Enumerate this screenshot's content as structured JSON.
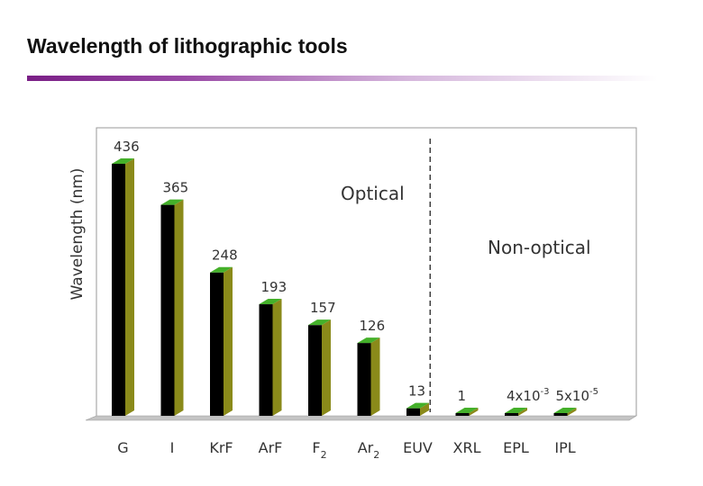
{
  "slide": {
    "title": "Wavelength of lithographic tools"
  },
  "chart_data": {
    "type": "bar",
    "title": "",
    "xlabel": "",
    "ylabel": "Wavelength (nm)",
    "ylim": [
      0,
      436
    ],
    "grid": false,
    "categories": [
      {
        "base": "G",
        "sub": ""
      },
      {
        "base": "I",
        "sub": ""
      },
      {
        "base": "KrF",
        "sub": ""
      },
      {
        "base": "ArF",
        "sub": ""
      },
      {
        "base": "F",
        "sub": "2"
      },
      {
        "base": "Ar",
        "sub": "2"
      },
      {
        "base": "EUV",
        "sub": ""
      },
      {
        "base": "XRL",
        "sub": ""
      },
      {
        "base": "EPL",
        "sub": ""
      },
      {
        "base": "IPL",
        "sub": ""
      }
    ],
    "values": [
      436,
      365,
      248,
      193,
      157,
      126,
      13,
      1,
      0.004,
      5e-05
    ],
    "value_labels": [
      {
        "text": "436",
        "sup": ""
      },
      {
        "text": "365",
        "sup": ""
      },
      {
        "text": "248",
        "sup": ""
      },
      {
        "text": "193",
        "sup": ""
      },
      {
        "text": "157",
        "sup": ""
      },
      {
        "text": "126",
        "sup": ""
      },
      {
        "text": "13",
        "sup": ""
      },
      {
        "text": "1",
        "sup": ""
      },
      {
        "text": "4x10",
        "sup": "-3"
      },
      {
        "text": "5x10",
        "sup": "-5"
      }
    ],
    "regions": [
      {
        "name": "Optical"
      },
      {
        "name": "Non-optical"
      }
    ],
    "divider_after_category": 6,
    "colors": {
      "bar_front": "#000000",
      "bar_side": "#8a8a1a",
      "bar_top": "#44b02a",
      "frame": "#9a9a9a",
      "floor": "#c4c4c4",
      "divider": "#333333",
      "text": "#333333"
    }
  }
}
